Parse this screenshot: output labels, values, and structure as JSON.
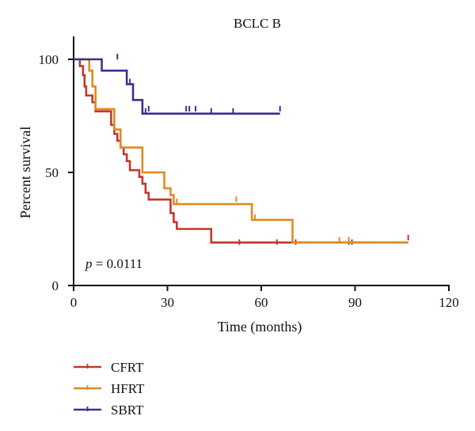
{
  "chart_data": {
    "type": "line",
    "subtype": "kaplan-meier",
    "title": "BCLC B",
    "xlabel": "Time (months)",
    "ylabel": "Percent survival",
    "xlim": [
      0,
      120
    ],
    "ylim": [
      0,
      100
    ],
    "xticks": [
      "0",
      "30",
      "60",
      "90",
      "120"
    ],
    "yticks": [
      "0",
      "50",
      "100"
    ],
    "grid": false,
    "legend_position": "bottom-left",
    "annotation": {
      "italic": "p",
      "rest": " = 0.0111"
    },
    "series": [
      {
        "name": "CFRT",
        "color": "#c0392b",
        "steps": [
          [
            0,
            100
          ],
          [
            2,
            97
          ],
          [
            3,
            93
          ],
          [
            3.5,
            88
          ],
          [
            4,
            84
          ],
          [
            6,
            81
          ],
          [
            7,
            77
          ],
          [
            11,
            77
          ],
          [
            12,
            71
          ],
          [
            13,
            67
          ],
          [
            14,
            64
          ],
          [
            15,
            61
          ],
          [
            16,
            58
          ],
          [
            17,
            55
          ],
          [
            18,
            51
          ],
          [
            21,
            48
          ],
          [
            22,
            45
          ],
          [
            23,
            41
          ],
          [
            24,
            38
          ],
          [
            30,
            38
          ],
          [
            31,
            32
          ],
          [
            32,
            28
          ],
          [
            33,
            25
          ],
          [
            43,
            25
          ],
          [
            44,
            19
          ],
          [
            107,
            19
          ]
        ],
        "censored": [
          [
            53,
            19
          ],
          [
            65,
            19
          ],
          [
            71,
            19
          ],
          [
            88,
            19
          ],
          [
            89,
            19
          ],
          [
            107,
            21
          ]
        ]
      },
      {
        "name": "HFRT",
        "color": "#e08a1e",
        "steps": [
          [
            0,
            100
          ],
          [
            5,
            95
          ],
          [
            6,
            88
          ],
          [
            7,
            78
          ],
          [
            12,
            78
          ],
          [
            13,
            69
          ],
          [
            15,
            61
          ],
          [
            20,
            61
          ],
          [
            22,
            50
          ],
          [
            27,
            50
          ],
          [
            29,
            43
          ],
          [
            31,
            40
          ],
          [
            32,
            36
          ],
          [
            56,
            36
          ],
          [
            57,
            29
          ],
          [
            69,
            29
          ],
          [
            70,
            19
          ],
          [
            107,
            19
          ]
        ],
        "censored": [
          [
            33,
            37
          ],
          [
            52,
            38
          ],
          [
            58,
            30
          ],
          [
            85,
            20
          ],
          [
            88,
            20
          ]
        ]
      },
      {
        "name": "SBRT",
        "color": "#3a3190",
        "steps": [
          [
            0,
            100
          ],
          [
            8,
            100
          ],
          [
            9,
            95
          ],
          [
            15,
            95
          ],
          [
            17,
            89
          ],
          [
            19,
            82
          ],
          [
            21,
            82
          ],
          [
            22,
            76
          ],
          [
            66,
            76
          ]
        ],
        "censored": [
          [
            14,
            101
          ],
          [
            18,
            90
          ],
          [
            23,
            77
          ],
          [
            24,
            78
          ],
          [
            36,
            78
          ],
          [
            37,
            78
          ],
          [
            39,
            78
          ],
          [
            44,
            77
          ],
          [
            51,
            77
          ],
          [
            66,
            78
          ]
        ]
      }
    ]
  }
}
